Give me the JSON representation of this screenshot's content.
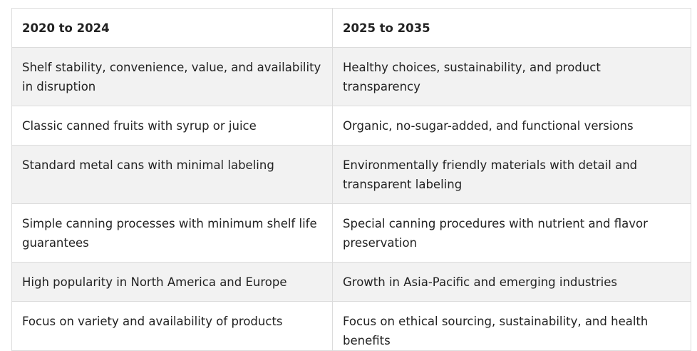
{
  "table": {
    "headers": [
      "2020 to 2024",
      "2025 to 2035"
    ],
    "rows": [
      [
        "Shelf stability, convenience, value, and availability in disruption",
        "Healthy choices, sustainability, and product transparency"
      ],
      [
        "Classic canned fruits with syrup or juice",
        "Organic, no-sugar-added, and functional versions"
      ],
      [
        "Standard metal cans with minimal labeling",
        "Environmentally friendly materials with detail and transparent labeling"
      ],
      [
        "Simple canning processes with minimum shelf life guarantees",
        "Special canning procedures with nutrient and flavor preservation"
      ],
      [
        "High popularity in North America and Europe",
        "Growth in Asia-Pacific and emerging industries"
      ],
      [
        "Focus on variety and availability of products",
        "Focus on ethical sourcing, sustainability, and health benefits"
      ]
    ]
  }
}
